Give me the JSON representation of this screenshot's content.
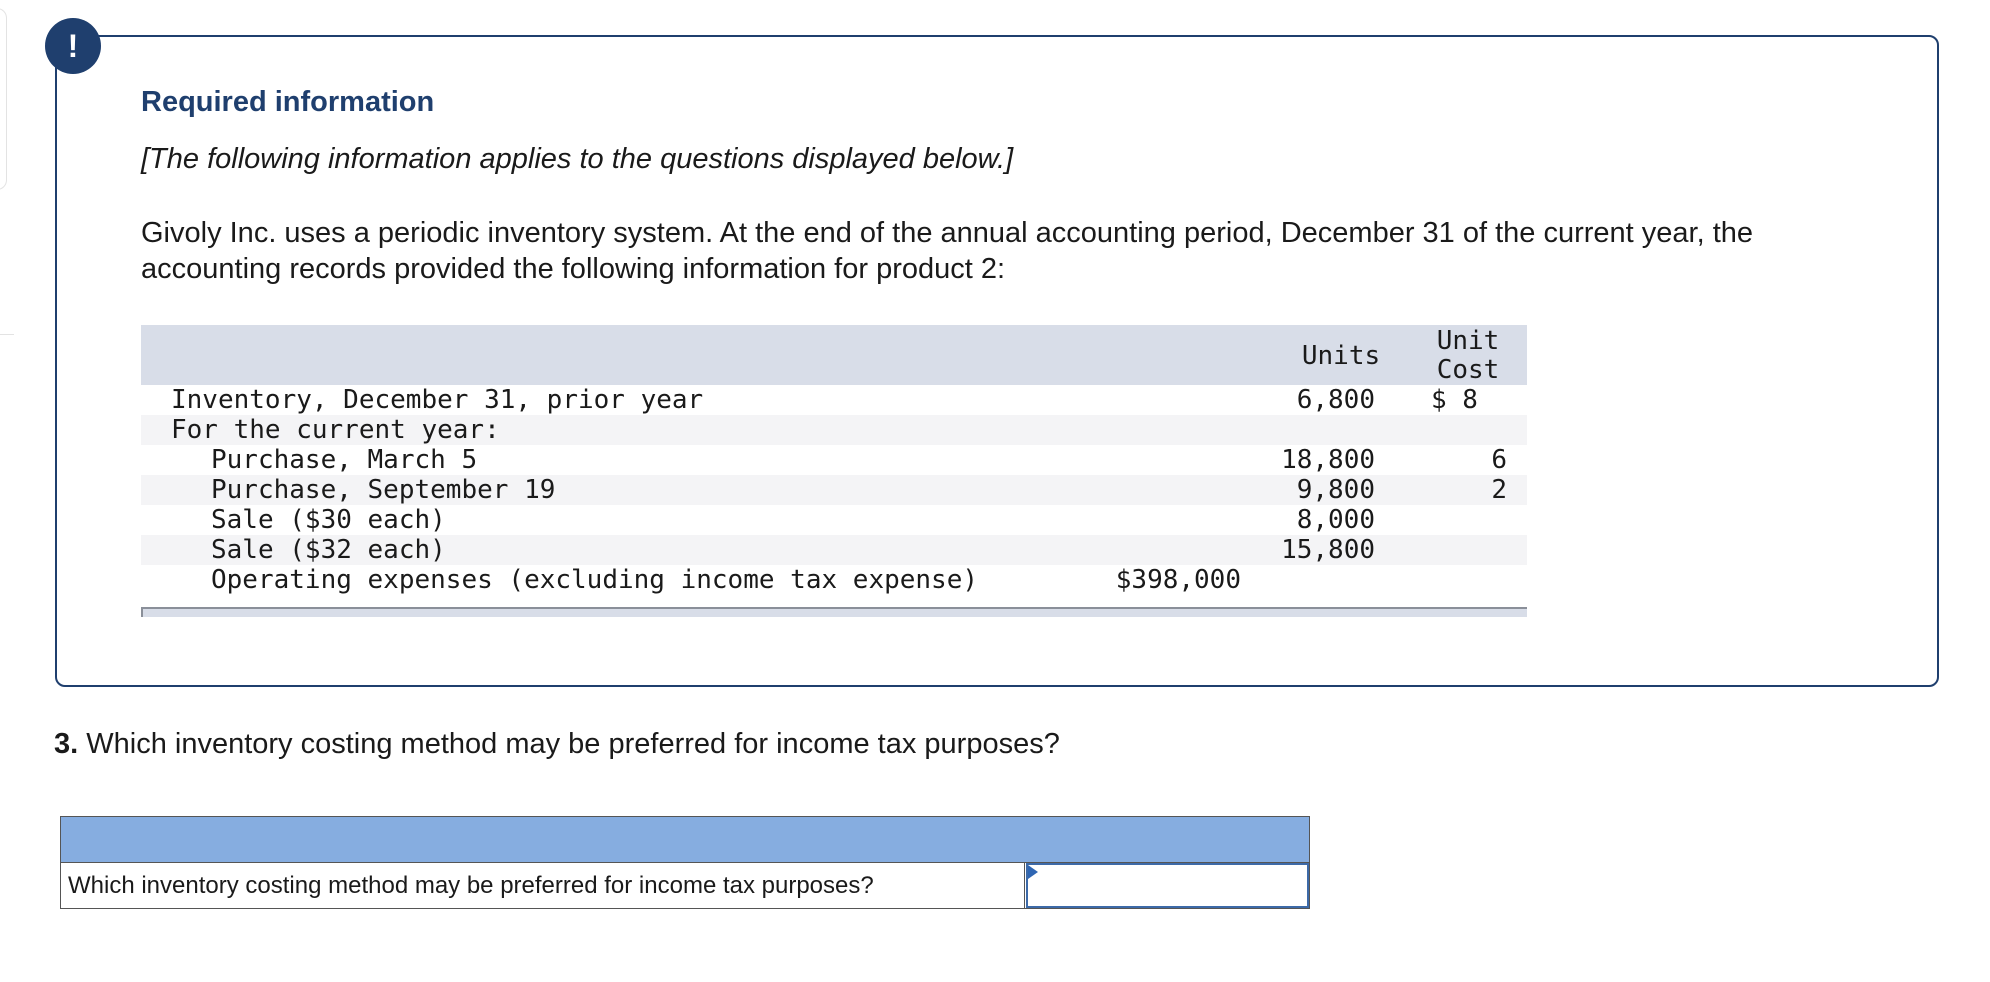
{
  "alert_badge": {
    "symbol": "!"
  },
  "info": {
    "title": "Required information",
    "note": "[The following information applies to the questions displayed below.]",
    "paragraph": "Givoly Inc. uses a periodic inventory system. At the end of the annual accounting period, December 31 of the current year, the accounting records provided the following information for product 2:"
  },
  "table": {
    "headers": {
      "units": "Units",
      "unit_cost_line1": "Unit",
      "unit_cost_line2": "Cost"
    },
    "rows": [
      {
        "label": "Inventory, December 31, prior year",
        "amount": "",
        "units": "6,800",
        "unit_cost": "$ 8"
      },
      {
        "label": "For the current year:",
        "amount": "",
        "units": "",
        "unit_cost": ""
      },
      {
        "label": "Purchase, March 5",
        "amount": "",
        "units": "18,800",
        "unit_cost": "6"
      },
      {
        "label": "Purchase, September 19",
        "amount": "",
        "units": "9,800",
        "unit_cost": "2"
      },
      {
        "label": "Sale ($30 each)",
        "amount": "",
        "units": "8,000",
        "unit_cost": ""
      },
      {
        "label": "Sale ($32 each)",
        "amount": "",
        "units": "15,800",
        "unit_cost": ""
      },
      {
        "label": "Operating expenses (excluding income tax expense)",
        "amount": "$398,000",
        "units": "",
        "unit_cost": ""
      }
    ]
  },
  "question": {
    "number": "3.",
    "text": "Which inventory costing method may be preferred for income tax purposes?"
  },
  "answer": {
    "prompt": "Which inventory costing method may be preferred for income tax purposes?",
    "value": ""
  },
  "colors": {
    "brand_navy": "#1f3f6e",
    "table_header": "#d8dde8",
    "answer_header": "#86ade0",
    "input_border": "#3d6aa8"
  }
}
